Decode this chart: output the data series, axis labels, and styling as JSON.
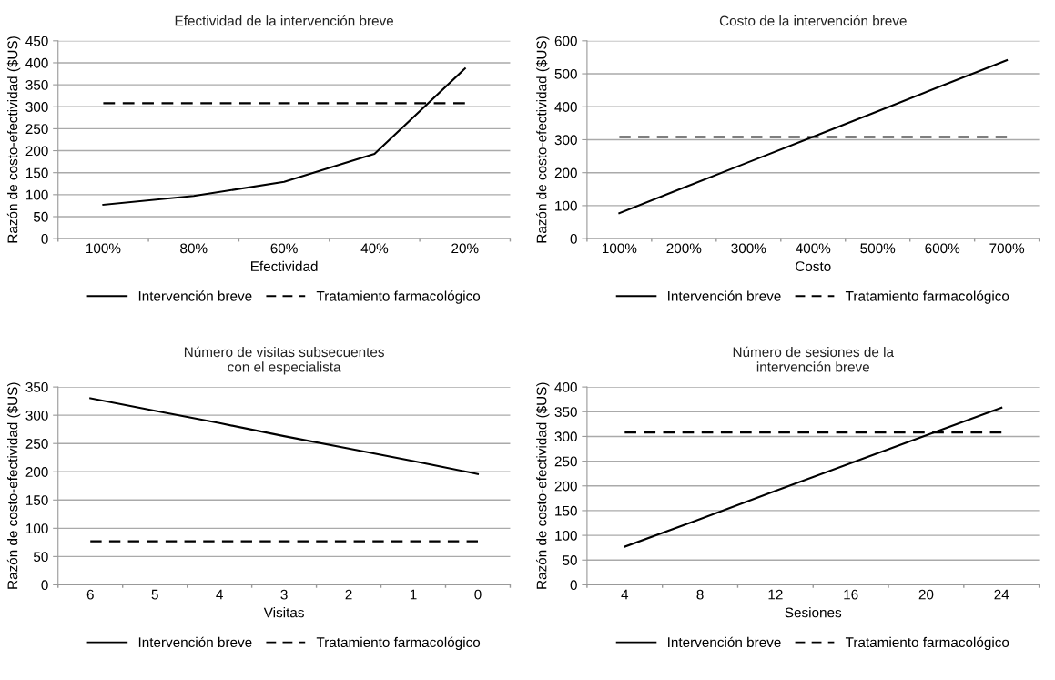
{
  "chart_data": [
    {
      "type": "line",
      "title": "Efectividad de la intervención breve",
      "xlabel": "Efectividad",
      "ylabel": "Razón de costo-efectividad ($US)",
      "categories": [
        "100%",
        "80%",
        "60%",
        "40%",
        "20%"
      ],
      "ylim": [
        0,
        450
      ],
      "yticks": [
        0,
        50,
        100,
        150,
        200,
        250,
        300,
        350,
        400,
        450
      ],
      "grid": "y",
      "legend": "bottom",
      "marker": "none",
      "series": [
        {
          "name": "Intervención breve",
          "color": "#000000",
          "line_style": "solid",
          "values": [
            77,
            97,
            129,
            193,
            387
          ]
        },
        {
          "name": "Tratamiento farmacológico",
          "color": "#000000",
          "line_style": "dashed",
          "values": [
            308,
            308,
            308,
            308,
            308
          ]
        }
      ]
    },
    {
      "type": "line",
      "title": "Costo de la intervención breve",
      "xlabel": "Costo",
      "ylabel": "Razón de costo-efectividad ($US)",
      "categories": [
        "100%",
        "200%",
        "300%",
        "400%",
        "500%",
        "600%",
        "700%"
      ],
      "ylim": [
        0,
        600
      ],
      "yticks": [
        0,
        100,
        200,
        300,
        400,
        500,
        600
      ],
      "grid": "y",
      "legend": "bottom",
      "marker": "none",
      "series": [
        {
          "name": "Intervención breve",
          "color": "#000000",
          "line_style": "solid",
          "values": [
            77,
            155,
            232,
            309,
            386,
            464,
            541
          ]
        },
        {
          "name": "Tratamiento farmacológico",
          "color": "#000000",
          "line_style": "dashed",
          "values": [
            308,
            308,
            308,
            308,
            308,
            308,
            308
          ]
        }
      ]
    },
    {
      "type": "line",
      "title": "Número de visitas subsecuentes\ncon el especialista",
      "xlabel": "Visitas",
      "ylabel": "Razón de costo-efectividad ($US)",
      "categories": [
        "6",
        "5",
        "4",
        "3",
        "2",
        "1",
        "0"
      ],
      "ylim": [
        0,
        350
      ],
      "yticks": [
        0,
        50,
        100,
        150,
        200,
        250,
        300,
        350
      ],
      "grid": "y",
      "legend": "bottom",
      "marker": "none",
      "series": [
        {
          "name": "Intervención breve",
          "color": "#000000",
          "line_style": "solid",
          "values": [
            330,
            308,
            286,
            263,
            241,
            219,
            196
          ]
        },
        {
          "name": "Tratamiento farmacológico",
          "color": "#000000",
          "line_style": "dashed",
          "values": [
            77,
            77,
            77,
            77,
            77,
            77,
            77
          ]
        }
      ]
    },
    {
      "type": "line",
      "title": "Número de sesiones de la\nintervención breve",
      "xlabel": "Sesiones",
      "ylabel": "Razón de costo-efectividad ($US)",
      "categories": [
        "4",
        "8",
        "12",
        "16",
        "20",
        "24"
      ],
      "ylim": [
        0,
        400
      ],
      "yticks": [
        0,
        50,
        100,
        150,
        200,
        250,
        300,
        350,
        400
      ],
      "grid": "y",
      "legend": "bottom",
      "marker": "none",
      "series": [
        {
          "name": "Intervención breve",
          "color": "#000000",
          "line_style": "solid",
          "values": [
            77,
            133,
            190,
            246,
            302,
            358
          ]
        },
        {
          "name": "Tratamiento farmacológico",
          "color": "#000000",
          "line_style": "dashed",
          "values": [
            308,
            308,
            308,
            308,
            308,
            308
          ]
        }
      ]
    }
  ]
}
